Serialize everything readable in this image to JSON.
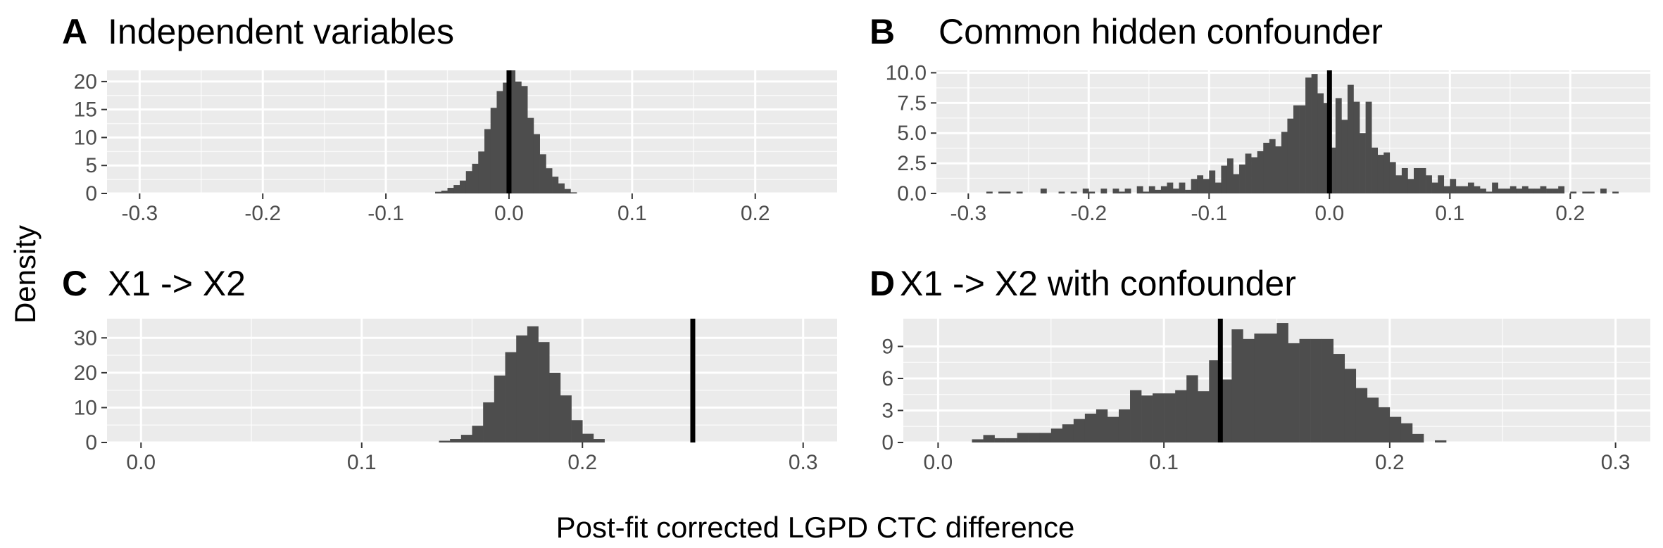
{
  "figure": {
    "ylabel": "Density",
    "xlabel": "Post-fit corrected LGPD CTC difference"
  },
  "colors": {
    "panel_background": "#ebebeb",
    "grid_major": "#ffffff",
    "bars": "#4d4d4d",
    "reference_line": "#000000",
    "tick_text": "#4d4d4d"
  },
  "chart_data": [
    {
      "type": "bar",
      "letter": "A",
      "title": "Independent variables",
      "xlim": [
        -0.3265,
        0.2665
      ],
      "ylim": [
        0,
        22
      ],
      "xticks": [
        -0.3,
        -0.2,
        -0.1,
        0.0,
        0.1,
        0.2
      ],
      "xtick_labels": [
        "-0.3",
        "-0.2",
        "-0.1",
        "0.0",
        "0.1",
        "0.2"
      ],
      "yticks": [
        0,
        5,
        10,
        15,
        20
      ],
      "ytick_labels": [
        "0",
        "5",
        "10",
        "15",
        "20"
      ],
      "bin_width": 0.005,
      "bin_starts": [
        -0.06,
        -0.055,
        -0.05,
        -0.045,
        -0.04,
        -0.035,
        -0.03,
        -0.025,
        -0.02,
        -0.015,
        -0.01,
        -0.005,
        0.0,
        0.005,
        0.01,
        0.015,
        0.02,
        0.025,
        0.03,
        0.035,
        0.04,
        0.045,
        0.05
      ],
      "values": [
        0.3,
        0.5,
        1.0,
        1.5,
        2.3,
        4.0,
        5.3,
        7.5,
        11.5,
        15.3,
        18.3,
        19.8,
        22.0,
        20.0,
        19.2,
        13.5,
        10.6,
        7.0,
        4.5,
        3.0,
        1.8,
        0.8,
        0.2
      ],
      "vline": 0.0
    },
    {
      "type": "bar",
      "letter": "B",
      "title": "Common hidden confounder",
      "xlim": [
        -0.3265,
        0.2665
      ],
      "ylim": [
        0,
        10.2
      ],
      "xticks": [
        -0.3,
        -0.2,
        -0.1,
        0.0,
        0.1,
        0.2
      ],
      "xtick_labels": [
        "-0.3",
        "-0.2",
        "-0.1",
        "0.0",
        "0.1",
        "0.2"
      ],
      "yticks": [
        0,
        2.5,
        5.0,
        7.5,
        10.0
      ],
      "ytick_labels": [
        "0.0",
        "2.5",
        "5.0",
        "7.5",
        "10.0"
      ],
      "bin_width": 0.005,
      "bin_starts": [
        -0.285,
        -0.275,
        -0.27,
        -0.26,
        -0.24,
        -0.225,
        -0.215,
        -0.205,
        -0.2,
        -0.19,
        -0.18,
        -0.175,
        -0.17,
        -0.16,
        -0.155,
        -0.15,
        -0.145,
        -0.14,
        -0.135,
        -0.13,
        -0.125,
        -0.12,
        -0.115,
        -0.11,
        -0.105,
        -0.1,
        -0.095,
        -0.09,
        -0.085,
        -0.08,
        -0.075,
        -0.07,
        -0.065,
        -0.06,
        -0.055,
        -0.05,
        -0.045,
        -0.04,
        -0.035,
        -0.03,
        -0.025,
        -0.02,
        -0.015,
        -0.01,
        -0.005,
        0.0,
        0.005,
        0.01,
        0.015,
        0.02,
        0.025,
        0.03,
        0.035,
        0.04,
        0.045,
        0.05,
        0.055,
        0.06,
        0.065,
        0.07,
        0.075,
        0.08,
        0.085,
        0.09,
        0.095,
        0.1,
        0.105,
        0.11,
        0.115,
        0.12,
        0.125,
        0.13,
        0.135,
        0.14,
        0.145,
        0.15,
        0.155,
        0.16,
        0.165,
        0.17,
        0.175,
        0.18,
        0.185,
        0.19,
        0.2,
        0.21,
        0.215,
        0.225,
        0.235
      ],
      "values": [
        0.15,
        0.15,
        0.15,
        0.15,
        0.4,
        0.15,
        0.15,
        0.4,
        0.15,
        0.4,
        0.4,
        0.15,
        0.4,
        0.6,
        0.15,
        0.6,
        0.3,
        0.6,
        0.9,
        0.4,
        0.9,
        0.3,
        1.2,
        1.5,
        1.2,
        1.9,
        0.9,
        2.3,
        2.9,
        1.6,
        2.4,
        3.3,
        3.0,
        3.5,
        4.2,
        4.5,
        3.9,
        5.1,
        6.2,
        7.3,
        7.3,
        9.6,
        9.9,
        8.3,
        7.5,
        3.8,
        7.9,
        6.1,
        9.0,
        7.6,
        5.0,
        7.6,
        3.8,
        3.2,
        3.4,
        2.6,
        1.5,
        2.1,
        1.2,
        2.1,
        2.1,
        1.5,
        0.9,
        1.5,
        0.6,
        1.2,
        0.6,
        0.6,
        0.9,
        0.6,
        0.4,
        0.15,
        0.9,
        0.4,
        0.4,
        0.6,
        0.4,
        0.6,
        0.4,
        0.4,
        0.6,
        0.4,
        0.4,
        0.6,
        0.15,
        0.15,
        0.15,
        0.4,
        0.15
      ],
      "vline": 0.0
    },
    {
      "type": "bar",
      "letter": "C",
      "title": "X1 -> X2",
      "xlim": [
        -0.0154,
        0.3154
      ],
      "ylim": [
        0,
        35.5
      ],
      "xticks": [
        0.0,
        0.1,
        0.2,
        0.3
      ],
      "xtick_labels": [
        "0.0",
        "0.1",
        "0.2",
        "0.3"
      ],
      "yticks": [
        0,
        10,
        20,
        30
      ],
      "ytick_labels": [
        "0",
        "10",
        "20",
        "30"
      ],
      "bin_width": 0.005,
      "bin_starts": [
        0.135,
        0.14,
        0.145,
        0.15,
        0.155,
        0.16,
        0.165,
        0.17,
        0.175,
        0.18,
        0.185,
        0.19,
        0.195,
        0.2,
        0.205
      ],
      "values": [
        0.5,
        1.0,
        2.2,
        4.8,
        11.5,
        19.2,
        25.9,
        30.7,
        33.3,
        28.8,
        20.0,
        13.5,
        6.4,
        2.5,
        1.0
      ],
      "vline": 0.25
    },
    {
      "type": "bar",
      "letter": "D",
      "title": "X1 -> X2 with confounder",
      "xlim": [
        -0.0154,
        0.3154
      ],
      "ylim": [
        0,
        11.6
      ],
      "xticks": [
        0.0,
        0.1,
        0.2,
        0.3
      ],
      "xtick_labels": [
        "0.0",
        "0.1",
        "0.2",
        "0.3"
      ],
      "yticks": [
        0,
        3,
        6,
        9
      ],
      "ytick_labels": [
        "0",
        "3",
        "6",
        "9"
      ],
      "bin_width": 0.005,
      "bin_starts": [
        0.015,
        0.02,
        0.025,
        0.03,
        0.035,
        0.04,
        0.045,
        0.05,
        0.055,
        0.06,
        0.065,
        0.07,
        0.075,
        0.08,
        0.085,
        0.09,
        0.095,
        0.1,
        0.105,
        0.11,
        0.115,
        0.12,
        0.125,
        0.13,
        0.135,
        0.14,
        0.145,
        0.15,
        0.155,
        0.16,
        0.165,
        0.17,
        0.175,
        0.18,
        0.185,
        0.19,
        0.195,
        0.2,
        0.205,
        0.21,
        0.22
      ],
      "values": [
        0.3,
        0.7,
        0.4,
        0.4,
        0.9,
        0.9,
        0.9,
        1.3,
        1.7,
        2.2,
        2.7,
        3.1,
        2.4,
        3.1,
        4.9,
        4.4,
        4.6,
        4.6,
        4.9,
        6.3,
        4.8,
        7.7,
        5.9,
        10.6,
        9.7,
        10.2,
        10.2,
        11.2,
        9.3,
        9.7,
        9.7,
        9.7,
        8.3,
        6.9,
        5.1,
        4.2,
        3.3,
        2.4,
        1.8,
        0.8,
        0.2
      ],
      "vline": 0.125
    }
  ]
}
